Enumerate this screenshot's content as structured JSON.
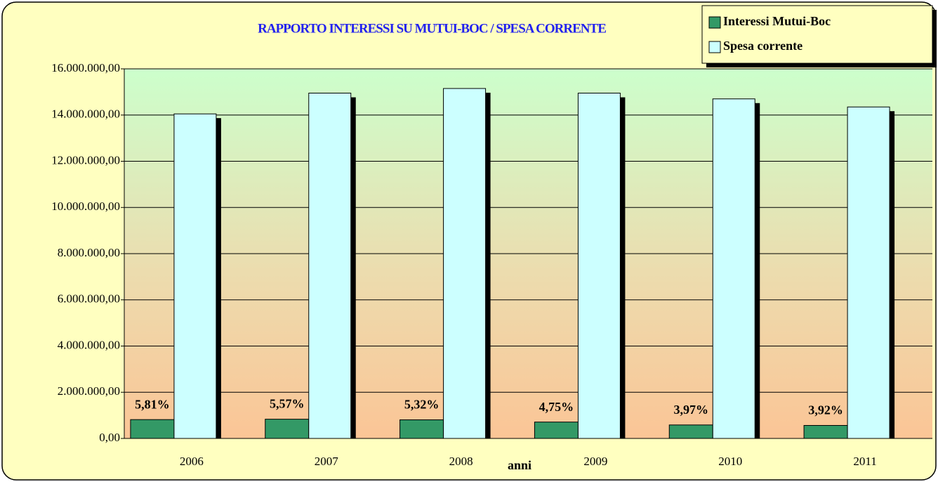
{
  "chart_data": {
    "type": "bar",
    "title": "RAPPORTO INTERESSI SU MUTUI-BOC / SPESA CORRENTE",
    "x_label": "anni",
    "categories": [
      "2006",
      "2007",
      "2008",
      "2009",
      "2010",
      "2011"
    ],
    "series": [
      {
        "name": "Interessi Mutui-Boc",
        "color": "#339966",
        "values": [
          816000,
          833000,
          806000,
          710000,
          584000,
          563000
        ]
      },
      {
        "name": "Spesa corrente",
        "color": "#ccffff",
        "values": [
          14050000,
          14950000,
          15150000,
          14950000,
          14700000,
          14350000
        ]
      }
    ],
    "annotations": [
      "5,81%",
      "5,57%",
      "5,32%",
      "4,75%",
      "3,97%",
      "3,92%"
    ],
    "ylim": [
      0,
      16000000
    ],
    "yticks": [
      {
        "value": 0,
        "label": "0,00"
      },
      {
        "value": 2000000,
        "label": "2.000.000,00"
      },
      {
        "value": 4000000,
        "label": "4.000.000,00"
      },
      {
        "value": 6000000,
        "label": "6.000.000,00"
      },
      {
        "value": 8000000,
        "label": "8.000.000,00"
      },
      {
        "value": 10000000,
        "label": "10.000.000,00"
      },
      {
        "value": 12000000,
        "label": "12.000.000,00"
      },
      {
        "value": 14000000,
        "label": "14.000.000,00"
      },
      {
        "value": 16000000,
        "label": "16.000.000,00"
      }
    ],
    "grid": true,
    "legend": "upper right"
  }
}
